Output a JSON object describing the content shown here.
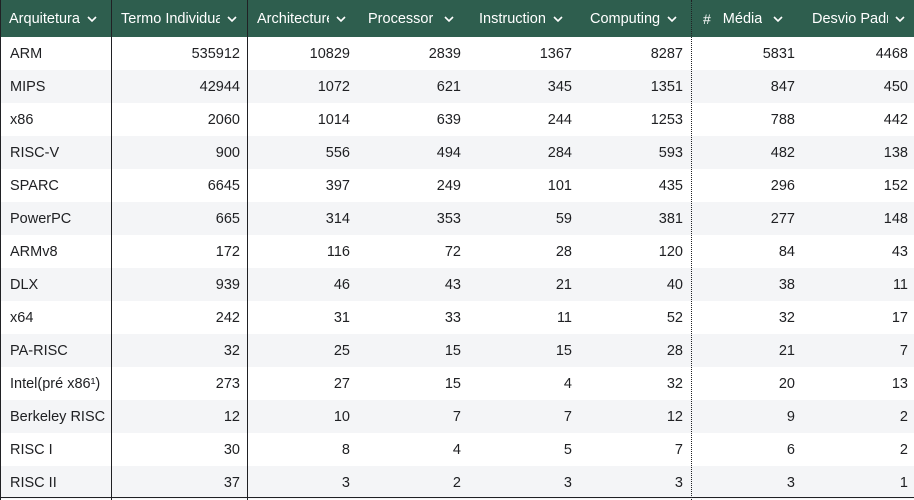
{
  "columns": [
    {
      "label": "Arquitetura",
      "prefix": ""
    },
    {
      "label": "Termo Individual",
      "prefix": ""
    },
    {
      "label": "Architecture",
      "prefix": ""
    },
    {
      "label": "Processor",
      "prefix": ""
    },
    {
      "label": "Instruction",
      "prefix": ""
    },
    {
      "label": "Computing",
      "prefix": ""
    },
    {
      "label": "Média",
      "prefix": "#"
    },
    {
      "label": "Desvio Padrão",
      "prefix": ""
    }
  ],
  "rows": [
    [
      "ARM",
      "535912",
      "10829",
      "2839",
      "1367",
      "8287",
      "5831",
      "4468"
    ],
    [
      "MIPS",
      "42944",
      "1072",
      "621",
      "345",
      "1351",
      "847",
      "450"
    ],
    [
      "x86",
      "2060",
      "1014",
      "639",
      "244",
      "1253",
      "788",
      "442"
    ],
    [
      "RISC-V",
      "900",
      "556",
      "494",
      "284",
      "593",
      "482",
      "138"
    ],
    [
      "SPARC",
      "6645",
      "397",
      "249",
      "101",
      "435",
      "296",
      "152"
    ],
    [
      "PowerPC",
      "665",
      "314",
      "353",
      "59",
      "381",
      "277",
      "148"
    ],
    [
      "ARMv8",
      "172",
      "116",
      "72",
      "28",
      "120",
      "84",
      "43"
    ],
    [
      "DLX",
      "939",
      "46",
      "43",
      "21",
      "40",
      "38",
      "11"
    ],
    [
      "x64",
      "242",
      "31",
      "33",
      "11",
      "52",
      "32",
      "17"
    ],
    [
      "PA-RISC",
      "32",
      "25",
      "15",
      "15",
      "28",
      "21",
      "7"
    ],
    [
      "Intel(pré x86¹)",
      "273",
      "27",
      "15",
      "4",
      "32",
      "20",
      "13"
    ],
    [
      "Berkeley RISC",
      "12",
      "10",
      "7",
      "7",
      "12",
      "9",
      "2"
    ],
    [
      "RISC I",
      "30",
      "8",
      "4",
      "5",
      "7",
      "6",
      "2"
    ],
    [
      "RISC II",
      "37",
      "3",
      "2",
      "3",
      "3",
      "3",
      "1"
    ]
  ],
  "colors": {
    "header_bg": "#2e5e4e",
    "header_text": "#ffffff",
    "alt_row_bg": "#f4f5f7"
  },
  "icons": {
    "sort": "chevron-down-icon"
  }
}
